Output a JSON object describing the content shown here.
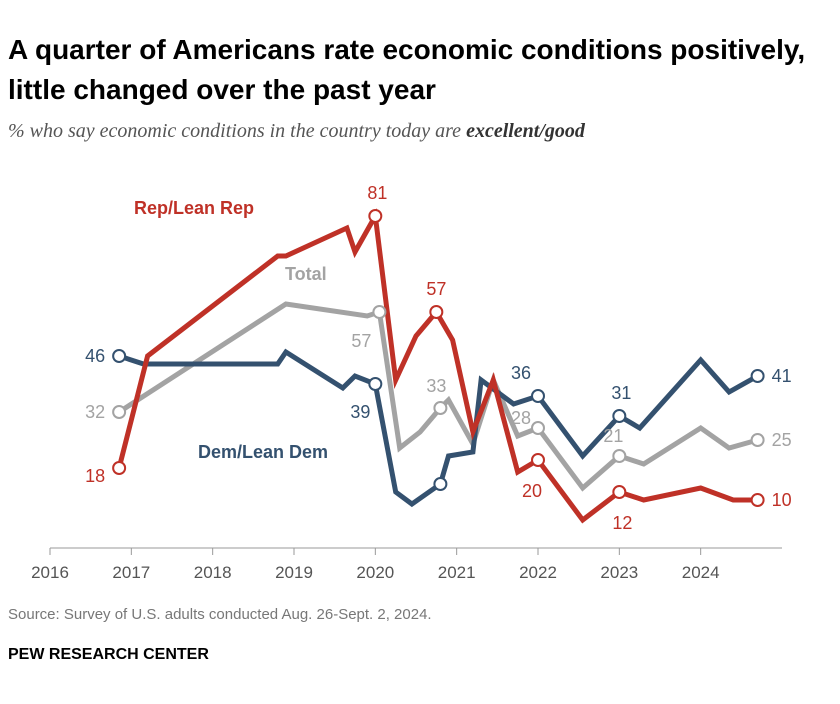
{
  "chart_data": {
    "type": "line",
    "title": "A quarter of Americans rate economic conditions positively, little changed over the past year",
    "subtitle_prefix": "% who say economic conditions in the country today are ",
    "subtitle_emphasis": "excellent/good",
    "xlabel": "",
    "ylabel": "",
    "xlim": [
      2016,
      2025
    ],
    "ylim": [
      0,
      90
    ],
    "grid": false,
    "x_ticks": [
      "2016",
      "2017",
      "2018",
      "2019",
      "2020",
      "2021",
      "2022",
      "2023",
      "2024"
    ],
    "series": [
      {
        "name": "Rep/Lean Rep",
        "color": "#bf3127",
        "legend_label": "Rep/Lean Rep",
        "points": [
          {
            "x": 2016.85,
            "y": 18,
            "label": "18",
            "marker": true
          },
          {
            "x": 2017.2,
            "y": 46
          },
          {
            "x": 2018.8,
            "y": 71
          },
          {
            "x": 2018.9,
            "y": 71
          },
          {
            "x": 2019.65,
            "y": 78
          },
          {
            "x": 2019.75,
            "y": 72
          },
          {
            "x": 2020.0,
            "y": 81,
            "label": "81",
            "marker": true
          },
          {
            "x": 2020.25,
            "y": 40
          },
          {
            "x": 2020.5,
            "y": 51
          },
          {
            "x": 2020.75,
            "y": 57,
            "label": "57",
            "marker": true
          },
          {
            "x": 2020.95,
            "y": 50
          },
          {
            "x": 2021.2,
            "y": 27
          },
          {
            "x": 2021.45,
            "y": 40
          },
          {
            "x": 2021.75,
            "y": 17
          },
          {
            "x": 2022.0,
            "y": 20,
            "label": "20",
            "marker": true
          },
          {
            "x": 2022.55,
            "y": 5
          },
          {
            "x": 2023.0,
            "y": 12,
            "label": "12",
            "marker": true
          },
          {
            "x": 2023.3,
            "y": 10
          },
          {
            "x": 2024.0,
            "y": 13
          },
          {
            "x": 2024.4,
            "y": 10
          },
          {
            "x": 2024.7,
            "y": 10,
            "label": "10",
            "marker": true
          }
        ]
      },
      {
        "name": "Total",
        "color": "#a3a3a3",
        "legend_label": "Total",
        "points": [
          {
            "x": 2016.85,
            "y": 32,
            "label": "32",
            "marker": true
          },
          {
            "x": 2018.9,
            "y": 59
          },
          {
            "x": 2019.9,
            "y": 56
          },
          {
            "x": 2020.05,
            "y": 57,
            "label": "57",
            "marker": true
          },
          {
            "x": 2020.3,
            "y": 23
          },
          {
            "x": 2020.55,
            "y": 27
          },
          {
            "x": 2020.8,
            "y": 33,
            "label": "33",
            "marker": true
          },
          {
            "x": 2020.9,
            "y": 35
          },
          {
            "x": 2021.2,
            "y": 24
          },
          {
            "x": 2021.45,
            "y": 40
          },
          {
            "x": 2021.75,
            "y": 26
          },
          {
            "x": 2022.0,
            "y": 28,
            "label": "28",
            "marker": true
          },
          {
            "x": 2022.55,
            "y": 13
          },
          {
            "x": 2023.0,
            "y": 21,
            "label": "21",
            "marker": true
          },
          {
            "x": 2023.3,
            "y": 19
          },
          {
            "x": 2024.0,
            "y": 28
          },
          {
            "x": 2024.35,
            "y": 23
          },
          {
            "x": 2024.7,
            "y": 25,
            "label": "25",
            "marker": true
          }
        ]
      },
      {
        "name": "Dem/Lean Dem",
        "color": "#34516f",
        "legend_label": "Dem/Lean Dem",
        "points": [
          {
            "x": 2016.85,
            "y": 46,
            "label": "46",
            "marker": true
          },
          {
            "x": 2017.15,
            "y": 44
          },
          {
            "x": 2018.8,
            "y": 44
          },
          {
            "x": 2018.9,
            "y": 47
          },
          {
            "x": 2019.6,
            "y": 38
          },
          {
            "x": 2019.75,
            "y": 41
          },
          {
            "x": 2020.0,
            "y": 39,
            "label": "39",
            "marker": true
          },
          {
            "x": 2020.25,
            "y": 12
          },
          {
            "x": 2020.45,
            "y": 9
          },
          {
            "x": 2020.8,
            "y": 14,
            "marker": true
          },
          {
            "x": 2020.9,
            "y": 21
          },
          {
            "x": 2021.2,
            "y": 22
          },
          {
            "x": 2021.3,
            "y": 40
          },
          {
            "x": 2021.7,
            "y": 34
          },
          {
            "x": 2022.0,
            "y": 36,
            "label": "36",
            "marker": true
          },
          {
            "x": 2022.55,
            "y": 21
          },
          {
            "x": 2023.0,
            "y": 31,
            "label": "31",
            "marker": true
          },
          {
            "x": 2023.25,
            "y": 28
          },
          {
            "x": 2024.0,
            "y": 45
          },
          {
            "x": 2024.35,
            "y": 37
          },
          {
            "x": 2024.7,
            "y": 41,
            "label": "41",
            "marker": true
          }
        ]
      }
    ]
  },
  "footer": {
    "source": "Source: Survey of U.S. adults conducted Aug. 26-Sept. 2, 2024.",
    "brand": "PEW RESEARCH CENTER"
  }
}
